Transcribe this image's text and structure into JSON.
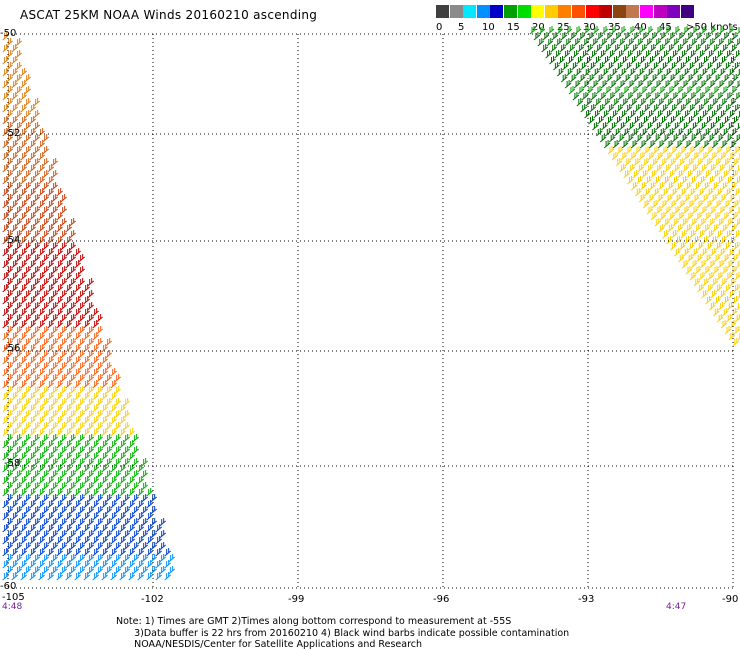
{
  "title": "ASCAT 25KM NOAA Winds 20160210 ascending",
  "scale": {
    "colors": [
      "#404040",
      "#8a8a8a",
      "#00e8ff",
      "#0090ff",
      "#0000c8",
      "#00a000",
      "#00dd00",
      "#ffff00",
      "#ffcc00",
      "#ff8000",
      "#ff5000",
      "#ff0000",
      "#c00000",
      "#8b4513",
      "#c07850",
      "#ff00ff",
      "#c000c0",
      "#8000c0",
      "#400080"
    ],
    "labels": [
      "0",
      "5",
      "10",
      "15",
      "20",
      "25",
      "30",
      "35",
      "40",
      "45",
      ">50 knots"
    ]
  },
  "axes": {
    "lat_labels": [
      "-50",
      "-52",
      "-54",
      "-56",
      "-58",
      "-60"
    ],
    "lon_labels": [
      "-105",
      "-102",
      "-99",
      "-96",
      "-93",
      "-90"
    ]
  },
  "times": {
    "left": "4:48",
    "right": "4:47"
  },
  "notes": [
    "Note: 1) Times are GMT 2)Times along bottom correspond to measurement at -55S",
    "      3)Data buffer is 22 hrs from 20160210 4) Black wind barbs indicate possible contamination",
    "      NOAA/NESDIS/Center for Satellite Applications and Research"
  ]
}
